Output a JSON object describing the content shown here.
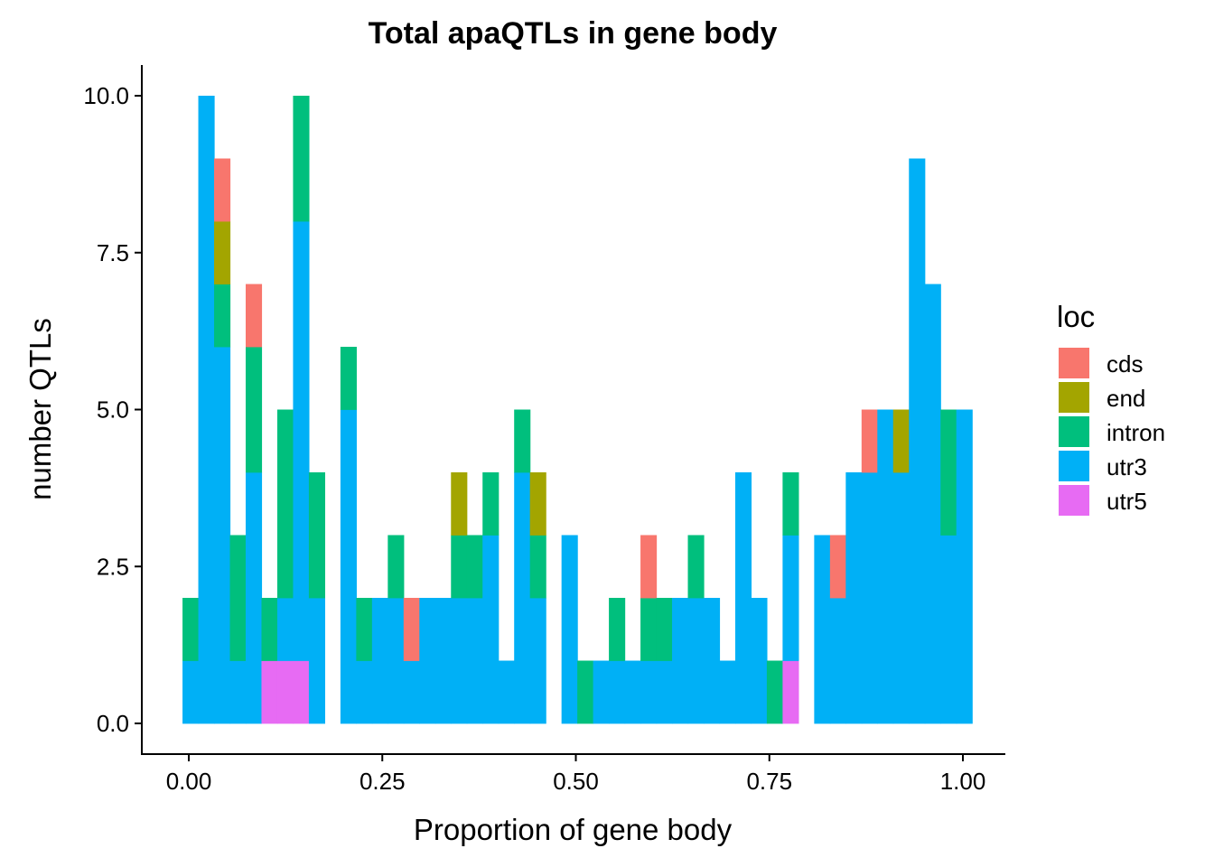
{
  "chart_data": {
    "type": "bar",
    "subtype": "stacked-histogram",
    "title": "Total apaQTLs in gene body",
    "xlabel": "Proportion of gene body",
    "ylabel": "number QTLs",
    "xlim": [
      -0.03,
      1.06
    ],
    "ylim": [
      -0.5,
      10.5
    ],
    "x_ticks": [
      0.0,
      0.25,
      0.5,
      0.75,
      1.0
    ],
    "x_tick_labels": [
      "0.00",
      "0.25",
      "0.50",
      "0.75",
      "1.00"
    ],
    "y_ticks": [
      0.0,
      2.5,
      5.0,
      7.5,
      10.0
    ],
    "y_tick_labels": [
      "0.0",
      "2.5",
      "5.0",
      "7.5",
      "10.0"
    ],
    "grid": false,
    "legend": {
      "title": "loc",
      "position": "right"
    },
    "bin_width": 0.0204,
    "bin_start": -0.0081,
    "stack_order": [
      "utr5",
      "utr3",
      "intron",
      "end",
      "cds"
    ],
    "series": [
      {
        "name": "cds",
        "color": "#F8766D",
        "values": [
          0,
          0,
          1,
          0,
          1,
          0,
          0,
          0,
          0,
          0,
          0,
          0,
          0,
          0,
          1,
          0,
          0,
          0,
          0,
          0,
          0,
          0,
          0,
          0,
          0,
          0,
          0,
          0,
          0,
          1,
          0,
          0,
          0,
          0,
          0,
          0,
          0,
          0,
          0,
          0,
          0,
          1,
          0,
          1,
          0,
          0,
          0,
          0,
          0,
          0,
          0
        ]
      },
      {
        "name": "end",
        "color": "#A3A500",
        "values": [
          0,
          0,
          1,
          0,
          0,
          0,
          0,
          0,
          0,
          0,
          0,
          0,
          0,
          0,
          0,
          0,
          0,
          1,
          0,
          0,
          0,
          0,
          1,
          0,
          0,
          0,
          0,
          0,
          0,
          0,
          0,
          0,
          0,
          0,
          0,
          0,
          0,
          0,
          0,
          0,
          0,
          0,
          0,
          0,
          0,
          1,
          0,
          0,
          0,
          0,
          0
        ]
      },
      {
        "name": "intron",
        "color": "#00BF7D",
        "values": [
          1,
          0,
          1,
          2,
          2,
          1,
          3,
          2,
          2,
          0,
          1,
          1,
          0,
          1,
          0,
          0,
          0,
          1,
          1,
          1,
          0,
          1,
          1,
          0,
          0,
          1,
          0,
          1,
          0,
          1,
          1,
          0,
          1,
          0,
          0,
          0,
          0,
          1,
          1,
          0,
          0,
          0,
          0,
          0,
          0,
          0,
          0,
          0,
          2,
          0,
          0
        ]
      },
      {
        "name": "utr3",
        "color": "#00B0F6",
        "values": [
          1,
          10,
          6,
          1,
          4,
          0,
          1,
          7,
          2,
          0,
          5,
          1,
          2,
          2,
          1,
          2,
          2,
          2,
          2,
          3,
          1,
          4,
          2,
          0,
          3,
          0,
          1,
          1,
          1,
          1,
          1,
          2,
          2,
          2,
          1,
          4,
          2,
          0,
          2,
          0,
          3,
          2,
          4,
          4,
          5,
          4,
          9,
          7,
          3,
          5,
          0
        ]
      },
      {
        "name": "utr5",
        "color": "#E76BF3",
        "values": [
          0,
          0,
          0,
          0,
          0,
          1,
          1,
          1,
          0,
          0,
          0,
          0,
          0,
          0,
          0,
          0,
          0,
          0,
          0,
          0,
          0,
          0,
          0,
          0,
          0,
          0,
          0,
          0,
          0,
          0,
          0,
          0,
          0,
          0,
          0,
          0,
          0,
          0,
          1,
          0,
          0,
          0,
          0,
          0,
          0,
          0,
          0,
          0,
          0,
          0,
          0
        ]
      }
    ]
  }
}
